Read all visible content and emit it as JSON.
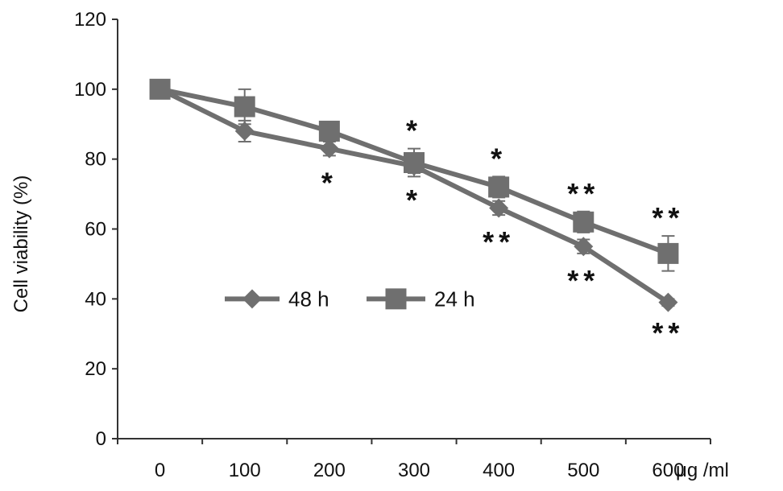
{
  "chart_data": {
    "type": "line",
    "title": "",
    "xlabel": "μg /ml",
    "ylabel": "Cell viability (%)",
    "categories": [
      "0",
      "100",
      "200",
      "300",
      "400",
      "500",
      "600"
    ],
    "ylim": [
      0,
      120
    ],
    "yticks": [
      "0",
      "20",
      "40",
      "60",
      "80",
      "100",
      "120"
    ],
    "grid": false,
    "legend_position": "center-left",
    "series": [
      {
        "name": "48 h",
        "marker": "diamond",
        "color": "#6f6f6f",
        "values": [
          100,
          88,
          83,
          78,
          66,
          55,
          39
        ],
        "error": [
          0,
          3,
          2,
          2,
          2,
          2,
          1
        ],
        "annotations": [
          "",
          "",
          "*",
          "*",
          "**",
          "**",
          "**"
        ]
      },
      {
        "name": "24 h",
        "marker": "square",
        "color": "#6f6f6f",
        "values": [
          100,
          95,
          88,
          79,
          72,
          62,
          53
        ],
        "error": [
          0,
          5,
          2,
          4,
          3,
          3,
          5
        ],
        "annotations": [
          "",
          "",
          "",
          "*",
          "*",
          "**",
          "**"
        ]
      }
    ]
  }
}
